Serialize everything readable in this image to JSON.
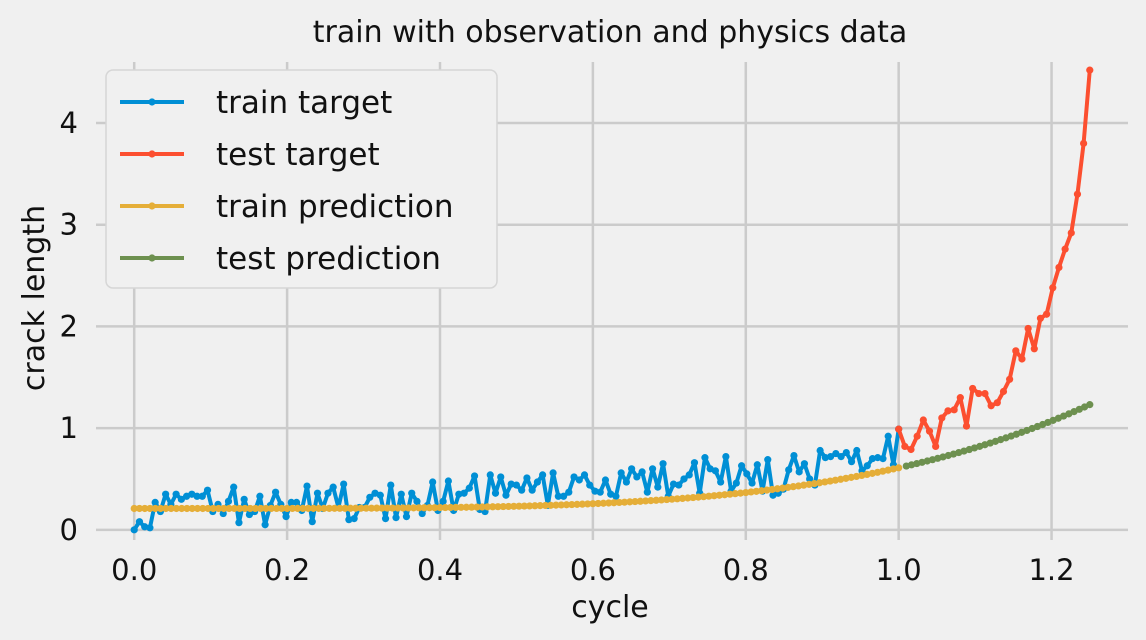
{
  "chart_data": {
    "type": "line",
    "title": "train with observation and physics data",
    "xlabel": "cycle",
    "ylabel": "crack length",
    "xlim": [
      -0.05,
      1.3
    ],
    "ylim": [
      -0.1,
      4.6
    ],
    "xticks": [
      "0.0",
      "0.2",
      "0.4",
      "0.6",
      "0.8",
      "1.0",
      "1.2"
    ],
    "xtick_values": [
      0,
      0.2,
      0.4,
      0.6,
      0.8,
      1.0,
      1.2
    ],
    "yticks": [
      "0",
      "1",
      "2",
      "3",
      "4"
    ],
    "ytick_values": [
      0,
      1,
      2,
      3,
      4
    ],
    "grid": true,
    "legend_position": "top-left",
    "series": [
      {
        "name": "train target",
        "color": "#008fd5",
        "x_start": 0.0,
        "x_end": 1.0,
        "values": [
          0.0,
          0.08,
          0.03,
          0.02,
          0.27,
          0.18,
          0.35,
          0.25,
          0.35,
          0.3,
          0.33,
          0.35,
          0.33,
          0.33,
          0.39,
          0.18,
          0.25,
          0.16,
          0.28,
          0.42,
          0.07,
          0.3,
          0.15,
          0.18,
          0.33,
          0.05,
          0.24,
          0.37,
          0.25,
          0.13,
          0.27,
          0.27,
          0.19,
          0.43,
          0.08,
          0.36,
          0.21,
          0.36,
          0.42,
          0.22,
          0.45,
          0.1,
          0.11,
          0.22,
          0.22,
          0.32,
          0.36,
          0.34,
          0.11,
          0.44,
          0.12,
          0.35,
          0.13,
          0.36,
          0.28,
          0.16,
          0.24,
          0.47,
          0.19,
          0.28,
          0.48,
          0.19,
          0.35,
          0.36,
          0.41,
          0.53,
          0.2,
          0.18,
          0.54,
          0.36,
          0.52,
          0.34,
          0.45,
          0.44,
          0.39,
          0.51,
          0.39,
          0.47,
          0.54,
          0.24,
          0.56,
          0.33,
          0.33,
          0.37,
          0.52,
          0.49,
          0.54,
          0.44,
          0.38,
          0.37,
          0.49,
          0.35,
          0.33,
          0.56,
          0.47,
          0.6,
          0.52,
          0.57,
          0.37,
          0.6,
          0.42,
          0.65,
          0.33,
          0.45,
          0.44,
          0.5,
          0.54,
          0.66,
          0.36,
          0.71,
          0.6,
          0.58,
          0.47,
          0.72,
          0.38,
          0.46,
          0.63,
          0.55,
          0.46,
          0.64,
          0.38,
          0.69,
          0.34,
          0.36,
          0.4,
          0.59,
          0.73,
          0.57,
          0.65,
          0.5,
          0.44,
          0.78,
          0.71,
          0.72,
          0.75,
          0.72,
          0.76,
          0.67,
          0.78,
          0.58,
          0.63,
          0.7,
          0.71,
          0.7,
          0.92,
          0.64,
          0.99
        ]
      },
      {
        "name": "test target",
        "color": "#fc4f30",
        "x_start": 1.0,
        "x_end": 1.25,
        "values": [
          0.99,
          0.82,
          0.79,
          0.92,
          1.08,
          0.97,
          0.82,
          1.1,
          1.17,
          1.18,
          1.3,
          1.02,
          1.39,
          1.34,
          1.34,
          1.22,
          1.25,
          1.36,
          1.48,
          1.76,
          1.68,
          1.98,
          1.78,
          2.08,
          2.12,
          2.38,
          2.58,
          2.76,
          2.92,
          3.3,
          3.8,
          4.52
        ]
      },
      {
        "name": "train prediction",
        "color": "#e5ae38",
        "fn": "0.21 + 0.4 * x^4.2",
        "x_start": 0.0,
        "x_end": 1.0
      },
      {
        "name": "test prediction",
        "color": "#6d904f",
        "fn": "0.21 + 0.4 * x^4.2",
        "x_start": 1.01,
        "x_end": 1.25
      }
    ]
  }
}
